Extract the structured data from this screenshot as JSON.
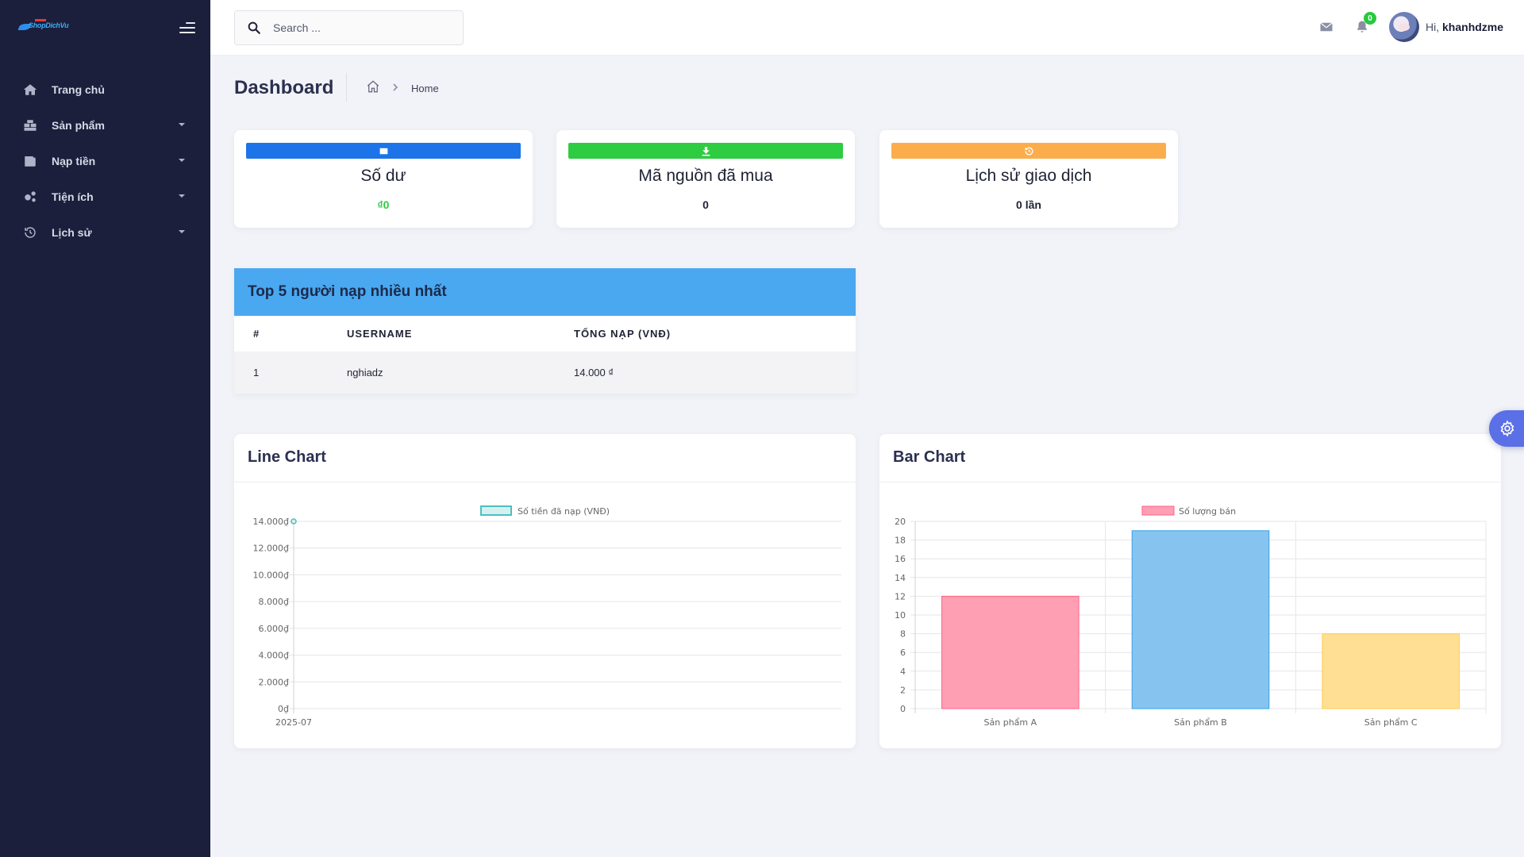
{
  "app": {
    "logo_text": "ShopDichVu"
  },
  "sidebar": {
    "items": [
      {
        "label": "Trang chủ",
        "icon": "home-icon",
        "has_caret": false
      },
      {
        "label": "Sản phẩm",
        "icon": "boxes-icon",
        "has_caret": true
      },
      {
        "label": "Nạp tiền",
        "icon": "wallet-icon",
        "has_caret": true
      },
      {
        "label": "Tiện ích",
        "icon": "cogs-icon",
        "has_caret": true
      },
      {
        "label": "Lịch sử",
        "icon": "history-icon",
        "has_caret": true
      }
    ]
  },
  "header": {
    "search_placeholder": "Search ...",
    "notification_count": "0",
    "greeting": "Hi,",
    "username": "khanhdzme"
  },
  "page": {
    "title": "Dashboard",
    "breadcrumb": "Home"
  },
  "stats": [
    {
      "title": "Số dư",
      "value": "₫0",
      "color": "#1d74e8",
      "value_color": "#2ecc40",
      "icon": "wallet-icon"
    },
    {
      "title": "Mã nguồn đã mua",
      "value": "0",
      "color": "#2ecc40",
      "value_color": "#1f2235",
      "icon": "download-icon"
    },
    {
      "title": "Lịch sử giao dịch",
      "value": "0 lần",
      "color": "#fbad4c",
      "value_color": "#1f2235",
      "icon": "history-icon"
    }
  ],
  "top5": {
    "title": "Top 5 người nạp nhiều nhất",
    "columns": [
      "#",
      "USERNAME",
      "TỔNG NẠP (VNĐ)"
    ],
    "rows": [
      {
        "rank": "1",
        "username": "nghiadz",
        "total": "14.000 ₫"
      }
    ]
  },
  "chart_data": [
    {
      "type": "line",
      "title": "Line Chart",
      "legend": "Số tiền đã nạp (VNĐ)",
      "color": "#4bc0c0",
      "x": [
        "2025-07"
      ],
      "values": [
        14000
      ],
      "ylim": [
        0,
        14000
      ],
      "yticks": [
        "14.000₫",
        "12.000₫",
        "10.000₫",
        "8.000₫",
        "6.000₫",
        "4.000₫",
        "2.000₫",
        "0₫"
      ],
      "ytick_values": [
        14000,
        12000,
        10000,
        8000,
        6000,
        4000,
        2000,
        0
      ]
    },
    {
      "type": "bar",
      "title": "Bar Chart",
      "legend": "Số lượng bán",
      "categories": [
        "Sản phẩm A",
        "Sản phẩm B",
        "Sản phẩm C"
      ],
      "values": [
        12,
        19,
        8
      ],
      "colors": [
        "#ff9fb3",
        "#86c4ef",
        "#ffdf93"
      ],
      "borders": [
        "#ff6384",
        "#36a2eb",
        "#ffce56"
      ],
      "ylim": [
        0,
        20
      ],
      "yticks": [
        "20",
        "18",
        "16",
        "14",
        "12",
        "10",
        "8",
        "6",
        "4",
        "2",
        "0"
      ],
      "ytick_values": [
        20,
        18,
        16,
        14,
        12,
        10,
        8,
        6,
        4,
        2,
        0
      ]
    }
  ]
}
